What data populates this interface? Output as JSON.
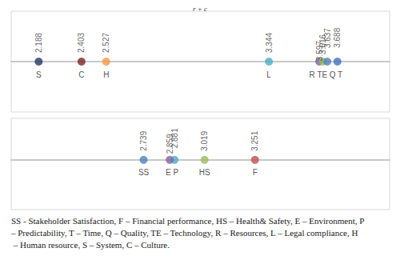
{
  "chart_data": [
    {
      "type": "scatter",
      "title": "r + c",
      "labels": [
        "S",
        "C",
        "H",
        "L",
        "R",
        "TE",
        "Q",
        "T"
      ],
      "values": [
        2.188,
        2.403,
        2.527,
        3.344,
        3.597,
        3.616,
        3.637,
        3.688
      ],
      "colors": [
        "#1f3864",
        "#7b2323",
        "#f79646",
        "#4bacc6",
        "#8064a2",
        "#9bbb59",
        "#4f81bd",
        "#4472c4"
      ],
      "xlim": [
        2.05,
        3.95
      ],
      "tick_labels": false,
      "data_labels": true
    },
    {
      "type": "scatter",
      "labels": [
        "SS",
        "P",
        "E",
        "HS",
        "F"
      ],
      "values": [
        2.739,
        2.881,
        2.859,
        3.019,
        3.251
      ],
      "colors": [
        "#4f81bd",
        "#4bacc6",
        "#8064a2",
        "#9bbb59",
        "#c0504d"
      ],
      "xlim": [
        2.13,
        3.87
      ],
      "tick_labels": false,
      "data_labels": true
    }
  ],
  "caption": "SS - Stakeholder Satisfaction, F – Financial performance, HS – Health& Safety, E – Environment, P – Predictability, T – Time, Q – Quality, TE – Technology, R – Resources, L – Legal compliance, H – Human resource, S – System, C – Culture."
}
